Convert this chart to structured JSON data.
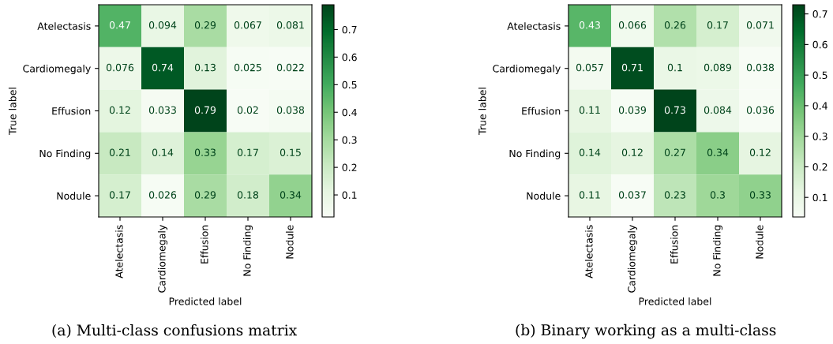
{
  "chart_data": [
    {
      "type": "heatmap",
      "xlabel": "Predicted label",
      "ylabel": "True label",
      "categories": [
        "Atelectasis",
        "Cardiomegaly",
        "Effusion",
        "No Finding",
        "Nodule"
      ],
      "y_categories": [
        "Atelectasis",
        "Cardiomegaly",
        "Effusion",
        "No Finding",
        "Nodule"
      ],
      "cells": [
        [
          0.47,
          0.094,
          0.29,
          0.067,
          0.081
        ],
        [
          0.076,
          0.74,
          0.13,
          0.025,
          0.022
        ],
        [
          0.12,
          0.033,
          0.79,
          0.02,
          0.038
        ],
        [
          0.21,
          0.14,
          0.33,
          0.17,
          0.15
        ],
        [
          0.17,
          0.026,
          0.29,
          0.18,
          0.34
        ]
      ],
      "clim": [
        0.02,
        0.79
      ],
      "cticks": [
        0.1,
        0.2,
        0.3,
        0.4,
        0.5,
        0.6,
        0.7
      ],
      "data_labels": true,
      "annotations": [
        "(a) Multi-class confusions matrix"
      ]
    },
    {
      "type": "heatmap",
      "xlabel": "Predicted label",
      "ylabel": "True label",
      "categories": [
        "Atelectasis",
        "Cardiomegaly",
        "Effusion",
        "No Finding",
        "Nodule"
      ],
      "y_categories": [
        "Atelectasis",
        "Cardiomegaly",
        "Effusion",
        "No Finding",
        "Nodule"
      ],
      "cells": [
        [
          0.43,
          0.066,
          0.26,
          0.17,
          0.071
        ],
        [
          0.057,
          0.71,
          0.1,
          0.089,
          0.038
        ],
        [
          0.11,
          0.039,
          0.73,
          0.084,
          0.036
        ],
        [
          0.14,
          0.12,
          0.27,
          0.34,
          0.12
        ],
        [
          0.11,
          0.037,
          0.23,
          0.3,
          0.33
        ]
      ],
      "clim": [
        0.036,
        0.73
      ],
      "cticks": [
        0.1,
        0.2,
        0.3,
        0.4,
        0.5,
        0.6,
        0.7
      ],
      "data_labels": true,
      "annotations": [
        "(b) Binary working as a multi-class"
      ]
    }
  ]
}
